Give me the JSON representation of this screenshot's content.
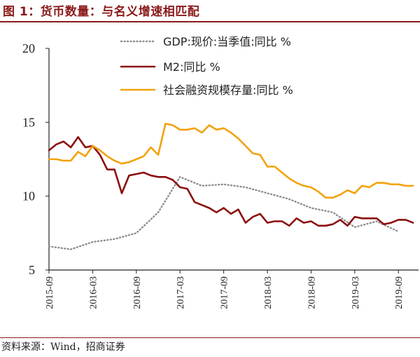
{
  "figure": {
    "title": "图 1：货币数量：与名义增速相匹配",
    "source": "资料来源：Wind，招商证券"
  },
  "chart_data": {
    "type": "line",
    "title": "图 1：货币数量：与名义增速相匹配",
    "xlabel": "",
    "ylabel": "",
    "ylim": [
      5,
      20
    ],
    "yticks": [
      5,
      10,
      15,
      20
    ],
    "xlim": [
      "2015-09",
      "2019-11"
    ],
    "xticks": [
      "2015-09",
      "2016-03",
      "2016-09",
      "2017-03",
      "2017-09",
      "2018-03",
      "2018-09",
      "2019-03",
      "2019-09"
    ],
    "grid": false,
    "legend_position": "top-right",
    "series": [
      {
        "name": "GDP:现价:当季值:同比 %",
        "color": "#8c8c8c",
        "style": "dotted",
        "points": [
          [
            "2015-09",
            6.6
          ],
          [
            "2015-12",
            6.4
          ],
          [
            "2016-03",
            6.9
          ],
          [
            "2016-06",
            7.1
          ],
          [
            "2016-09",
            7.5
          ],
          [
            "2016-12",
            8.9
          ],
          [
            "2017-03",
            11.3
          ],
          [
            "2017-06",
            10.7
          ],
          [
            "2017-09",
            10.8
          ],
          [
            "2017-12",
            10.6
          ],
          [
            "2018-03",
            10.2
          ],
          [
            "2018-06",
            9.8
          ],
          [
            "2018-09",
            9.2
          ],
          [
            "2018-12",
            8.9
          ],
          [
            "2019-03",
            7.9
          ],
          [
            "2019-06",
            8.3
          ],
          [
            "2019-09",
            7.6
          ]
        ]
      },
      {
        "name": "M2:同比 %",
        "color": "#8b0f0f",
        "style": "solid",
        "points": [
          [
            "2015-09",
            13.1
          ],
          [
            "2015-10",
            13.5
          ],
          [
            "2015-11",
            13.7
          ],
          [
            "2015-12",
            13.3
          ],
          [
            "2016-01",
            14.0
          ],
          [
            "2016-02",
            13.3
          ],
          [
            "2016-03",
            13.4
          ],
          [
            "2016-04",
            12.8
          ],
          [
            "2016-05",
            11.8
          ],
          [
            "2016-06",
            11.8
          ],
          [
            "2016-07",
            10.2
          ],
          [
            "2016-08",
            11.4
          ],
          [
            "2016-09",
            11.5
          ],
          [
            "2016-10",
            11.6
          ],
          [
            "2016-11",
            11.4
          ],
          [
            "2016-12",
            11.3
          ],
          [
            "2017-01",
            11.3
          ],
          [
            "2017-02",
            11.1
          ],
          [
            "2017-03",
            10.6
          ],
          [
            "2017-04",
            10.5
          ],
          [
            "2017-05",
            9.6
          ],
          [
            "2017-06",
            9.4
          ],
          [
            "2017-07",
            9.2
          ],
          [
            "2017-08",
            8.9
          ],
          [
            "2017-09",
            9.2
          ],
          [
            "2017-10",
            8.8
          ],
          [
            "2017-11",
            9.1
          ],
          [
            "2017-12",
            8.2
          ],
          [
            "2018-01",
            8.6
          ],
          [
            "2018-02",
            8.8
          ],
          [
            "2018-03",
            8.2
          ],
          [
            "2018-04",
            8.3
          ],
          [
            "2018-05",
            8.3
          ],
          [
            "2018-06",
            8.0
          ],
          [
            "2018-07",
            8.5
          ],
          [
            "2018-08",
            8.2
          ],
          [
            "2018-09",
            8.3
          ],
          [
            "2018-10",
            8.0
          ],
          [
            "2018-11",
            8.0
          ],
          [
            "2018-12",
            8.1
          ],
          [
            "2019-01",
            8.4
          ],
          [
            "2019-02",
            8.0
          ],
          [
            "2019-03",
            8.6
          ],
          [
            "2019-04",
            8.5
          ],
          [
            "2019-05",
            8.5
          ],
          [
            "2019-06",
            8.5
          ],
          [
            "2019-07",
            8.1
          ],
          [
            "2019-08",
            8.2
          ],
          [
            "2019-09",
            8.4
          ],
          [
            "2019-10",
            8.4
          ],
          [
            "2019-11",
            8.2
          ]
        ]
      },
      {
        "name": "社会融资规模存量:同比 %",
        "color": "#f2a20c",
        "style": "solid",
        "points": [
          [
            "2015-09",
            12.5
          ],
          [
            "2015-10",
            12.5
          ],
          [
            "2015-11",
            12.4
          ],
          [
            "2015-12",
            12.4
          ],
          [
            "2016-01",
            13.0
          ],
          [
            "2016-02",
            12.7
          ],
          [
            "2016-03",
            13.4
          ],
          [
            "2016-04",
            13.1
          ],
          [
            "2016-05",
            12.7
          ],
          [
            "2016-06",
            12.4
          ],
          [
            "2016-07",
            12.2
          ],
          [
            "2016-08",
            12.3
          ],
          [
            "2016-09",
            12.5
          ],
          [
            "2016-10",
            12.7
          ],
          [
            "2016-11",
            13.3
          ],
          [
            "2016-12",
            12.8
          ],
          [
            "2017-01",
            14.9
          ],
          [
            "2017-02",
            14.8
          ],
          [
            "2017-03",
            14.5
          ],
          [
            "2017-04",
            14.5
          ],
          [
            "2017-05",
            14.6
          ],
          [
            "2017-06",
            14.3
          ],
          [
            "2017-07",
            14.8
          ],
          [
            "2017-08",
            14.5
          ],
          [
            "2017-09",
            14.6
          ],
          [
            "2017-10",
            14.3
          ],
          [
            "2017-11",
            13.9
          ],
          [
            "2017-12",
            13.4
          ],
          [
            "2018-01",
            12.9
          ],
          [
            "2018-02",
            12.8
          ],
          [
            "2018-03",
            12.0
          ],
          [
            "2018-04",
            12.0
          ],
          [
            "2018-05",
            11.6
          ],
          [
            "2018-06",
            11.2
          ],
          [
            "2018-07",
            10.9
          ],
          [
            "2018-08",
            10.7
          ],
          [
            "2018-09",
            10.6
          ],
          [
            "2018-10",
            10.3
          ],
          [
            "2018-11",
            9.9
          ],
          [
            "2018-12",
            9.9
          ],
          [
            "2019-01",
            10.1
          ],
          [
            "2019-02",
            10.4
          ],
          [
            "2019-03",
            10.2
          ],
          [
            "2019-04",
            10.7
          ],
          [
            "2019-05",
            10.6
          ],
          [
            "2019-06",
            10.9
          ],
          [
            "2019-07",
            10.9
          ],
          [
            "2019-08",
            10.8
          ],
          [
            "2019-09",
            10.8
          ],
          [
            "2019-10",
            10.7
          ],
          [
            "2019-11",
            10.7
          ]
        ]
      }
    ]
  }
}
